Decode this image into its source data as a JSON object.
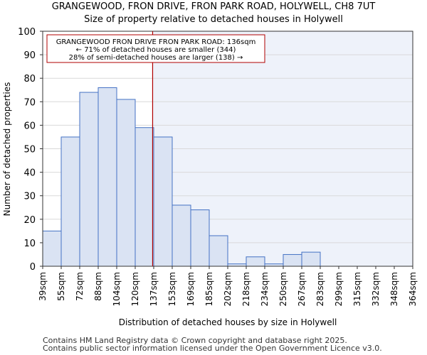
{
  "chart_data": {
    "type": "bar",
    "title": "GRANGEWOOD, FRON DRIVE, FRON PARK ROAD, HOLYWELL, CH8 7UT",
    "subtitle": "Size of property relative to detached houses in Holywell",
    "xlabel": "Distribution of detached houses by size in Holywell",
    "ylabel": "Number of detached properties",
    "x_tick_labels": [
      "39sqm",
      "55sqm",
      "72sqm",
      "88sqm",
      "104sqm",
      "120sqm",
      "137sqm",
      "153sqm",
      "169sqm",
      "185sqm",
      "202sqm",
      "218sqm",
      "234sqm",
      "250sqm",
      "267sqm",
      "283sqm",
      "299sqm",
      "315sqm",
      "332sqm",
      "348sqm",
      "364sqm"
    ],
    "values": [
      15,
      55,
      74,
      76,
      71,
      59,
      55,
      26,
      24,
      13,
      1,
      4,
      1,
      5,
      6,
      0,
      0,
      0,
      0,
      0
    ],
    "ylim": [
      0,
      100
    ],
    "yticks": [
      0,
      10,
      20,
      30,
      40,
      50,
      60,
      70,
      80,
      90,
      100
    ],
    "highlight_value_sqm": 136,
    "annotation": {
      "line1": "GRANGEWOOD FRON DRIVE FRON PARK ROAD: 136sqm",
      "line2": "← 71% of detached houses are smaller (344)",
      "line3": "28% of semi-detached houses are larger (138) →"
    },
    "colors": {
      "bar_fill": "#dae3f3",
      "bar_stroke": "#4472c4",
      "marker_line": "#b00000",
      "right_shade": "#eef2fa"
    }
  },
  "footer": {
    "line1": "Contains HM Land Registry data © Crown copyright and database right 2025.",
    "line2": "Contains public sector information licensed under the Open Government Licence v3.0."
  }
}
